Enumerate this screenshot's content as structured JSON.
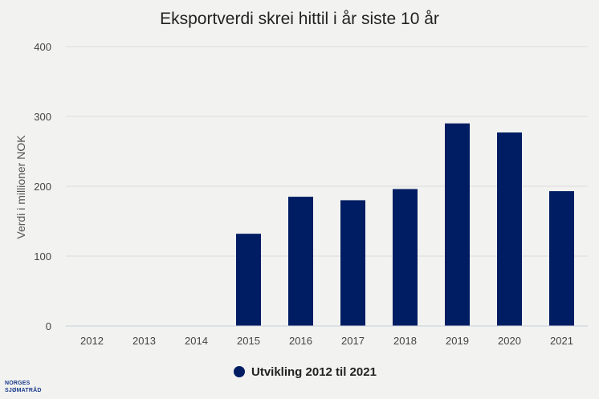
{
  "chart_data": {
    "type": "bar",
    "title": "Eksportverdi skrei hittil i år siste 10 år",
    "ylabel": "Verdi i millioner NOK",
    "xlabel": "",
    "categories": [
      "2012",
      "2013",
      "2014",
      "2015",
      "2016",
      "2017",
      "2018",
      "2019",
      "2020",
      "2021"
    ],
    "series": [
      {
        "name": "Utvikling 2012 til 2021",
        "values": [
          0,
          0,
          0,
          132,
          185,
          180,
          196,
          290,
          277,
          193
        ],
        "color": "#001d63"
      }
    ],
    "ylim": [
      0,
      400
    ],
    "yticks": [
      "0",
      "100",
      "200",
      "300",
      "400"
    ],
    "grid": true,
    "legend": "bottom-center"
  },
  "logo": {
    "line1": "NORGES",
    "line2": "SJØMATRÅD"
  }
}
